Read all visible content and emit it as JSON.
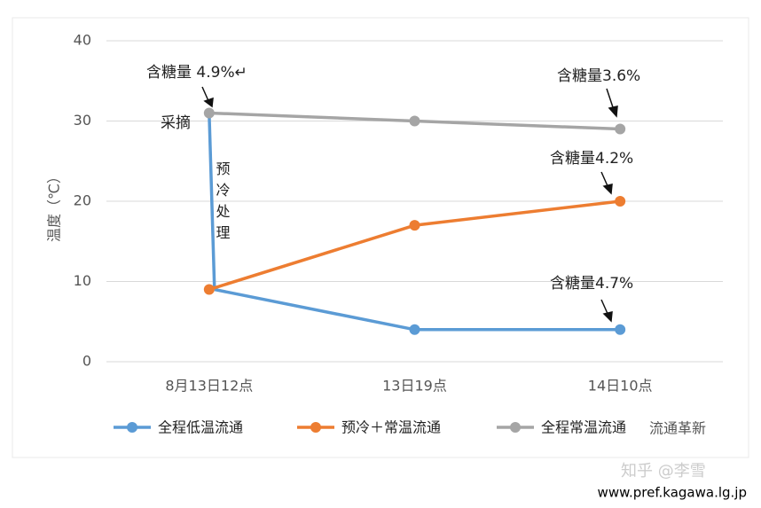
{
  "chart_data": {
    "type": "line",
    "y_label": "温度（℃）",
    "categories": [
      "8月13日12点",
      "13日19点",
      "14日10点"
    ],
    "series": [
      {
        "name": "全程低温流通",
        "color": "#5b9bd5",
        "start_value": 31,
        "values": [
          9,
          4,
          4
        ]
      },
      {
        "name": "预冷＋常温流通",
        "color": "#ed7d31",
        "values": [
          9,
          17,
          20
        ]
      },
      {
        "name": "全程常温流通",
        "color": "#a5a5a5",
        "values": [
          31,
          30,
          29
        ]
      }
    ],
    "ylim": [
      0,
      40
    ],
    "yticks": [
      0,
      10,
      20,
      30,
      40
    ],
    "grid": true,
    "legend": "bottom",
    "annotations": [
      "含糖量 4.9%↵",
      "采摘",
      "预冷处理",
      "含糖量3.6%",
      "含糖量4.2%",
      "含糖量4.7%"
    ],
    "watermarks": [
      "流通革新",
      "知乎 @李雪",
      "www.pref.kagawa.lg.jp"
    ]
  }
}
